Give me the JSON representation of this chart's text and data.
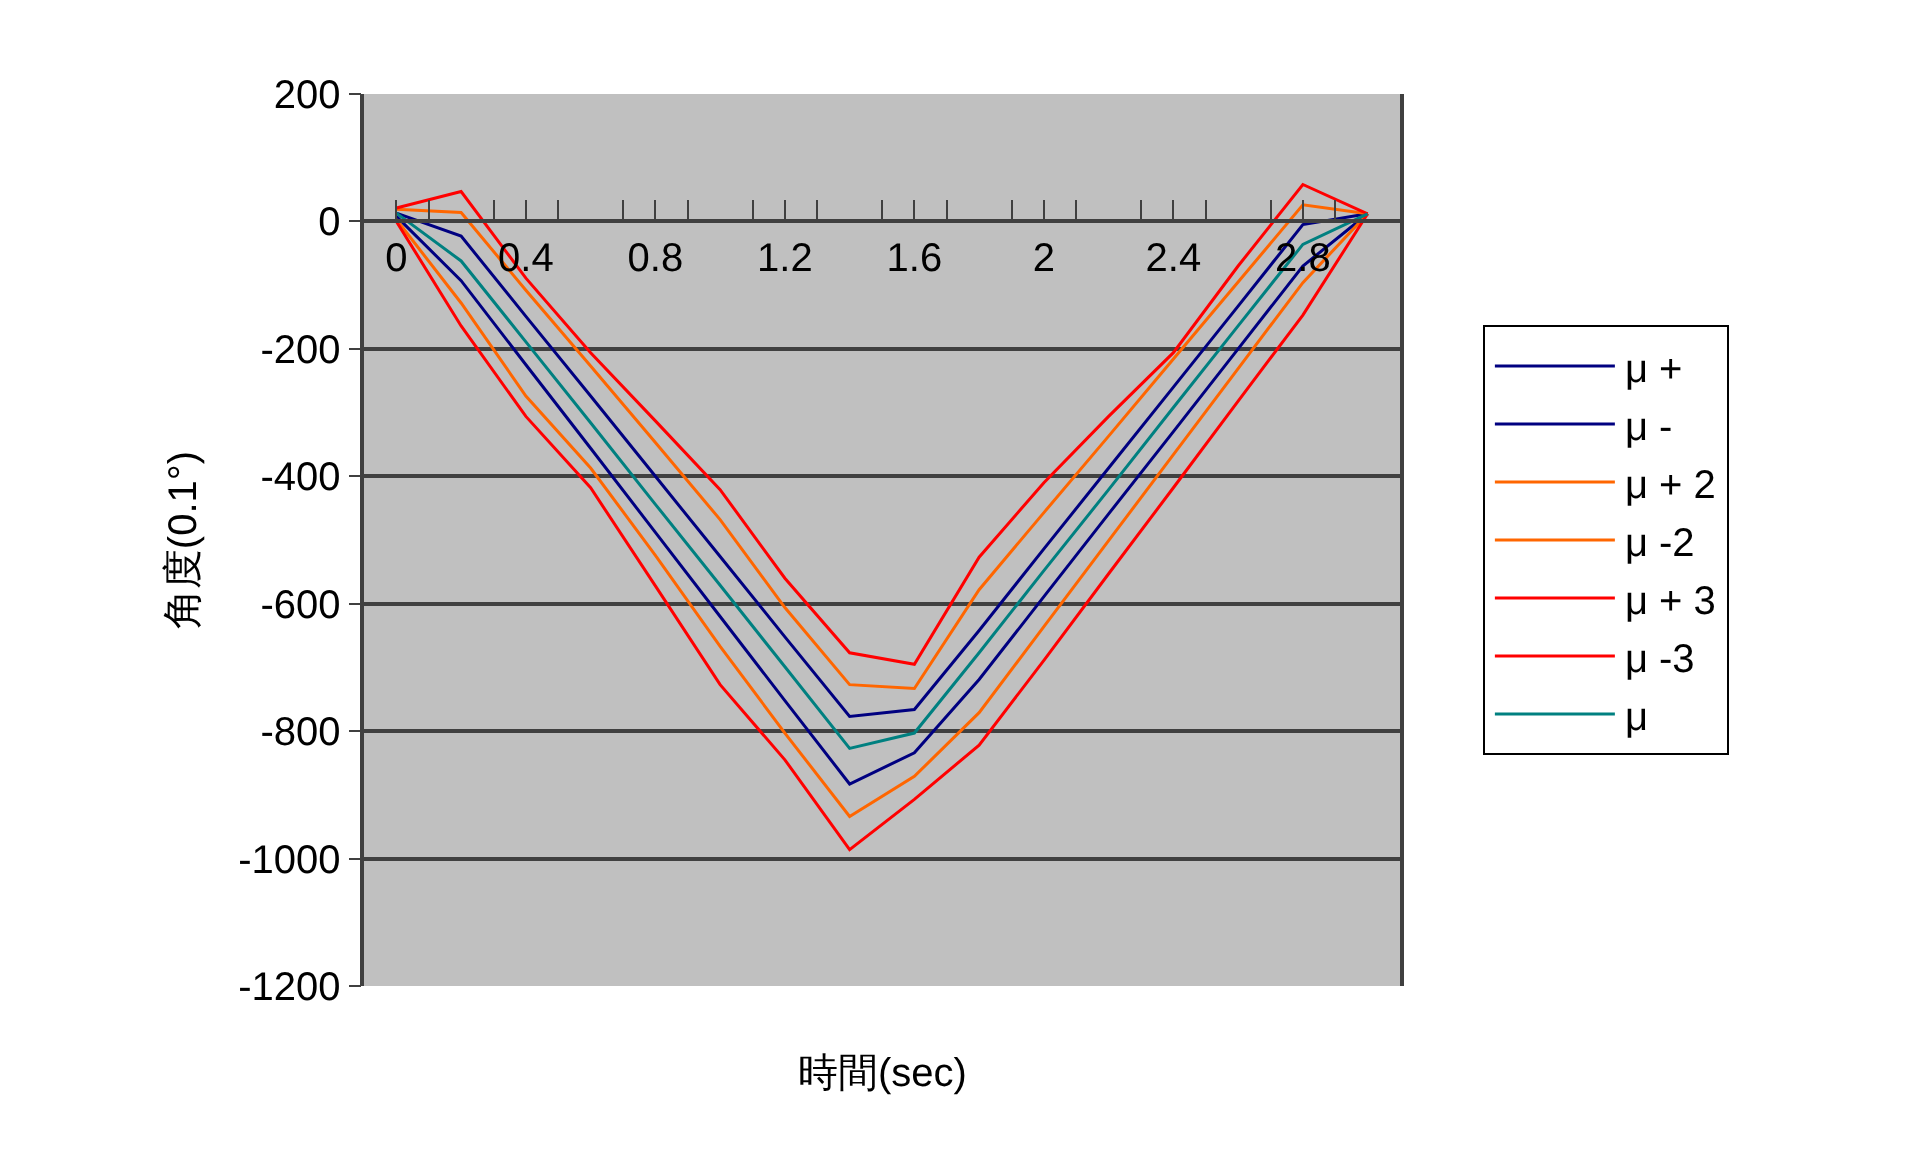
{
  "chart_data": {
    "type": "line",
    "xlabel": "時間(sec)",
    "ylabel": "角度(0.1°)",
    "x": [
      0,
      0.2,
      0.4,
      0.6,
      0.8,
      1.0,
      1.2,
      1.4,
      1.6,
      1.8,
      2.0,
      2.2,
      2.4,
      2.6,
      2.8,
      3.0
    ],
    "xlim": [
      -0.1,
      3.1
    ],
    "xticks": [
      0,
      {
        "value": 0.1,
        "label": null
      },
      {
        "value": 0.3,
        "label": null
      },
      0.4,
      {
        "value": 0.5,
        "label": null
      },
      {
        "value": 0.7,
        "label": null
      },
      0.8,
      {
        "value": 0.9,
        "label": null
      },
      {
        "value": 1.1,
        "label": null
      },
      1.2,
      {
        "value": 1.3,
        "label": null
      },
      {
        "value": 1.5,
        "label": null
      },
      1.6,
      {
        "value": 1.7,
        "label": null
      },
      {
        "value": 1.9,
        "label": null
      },
      2,
      {
        "value": 2.1,
        "label": null
      },
      {
        "value": 2.3,
        "label": null
      },
      2.4,
      {
        "value": 2.5,
        "label": null
      },
      {
        "value": 2.7,
        "label": null
      },
      2.8,
      {
        "value": 2.9,
        "label": null
      }
    ],
    "ylim": [
      -1200,
      200
    ],
    "yticks": [
      200,
      0,
      {
        "value": -200,
        "label": "-200"
      },
      {
        "value": -400,
        "label": "-400"
      },
      {
        "value": -600,
        "label": "-600"
      },
      {
        "value": -800,
        "label": "-800"
      },
      {
        "value": -1000,
        "label": "-1000"
      },
      {
        "value": -1200,
        "label": "-1200"
      }
    ],
    "grid": "y",
    "legend": "right",
    "marker": "none",
    "line_style": "solid",
    "series": [
      {
        "name": "μ +",
        "color": "#000080",
        "values": [
          13,
          -23,
          -149,
          -274,
          -400,
          -526,
          -652,
          -777,
          -766,
          -642,
          -514,
          -387,
          -260,
          -133,
          -5,
          12
        ]
      },
      {
        "name": "μ -",
        "color": "#000080",
        "values": [
          8,
          -93,
          -225,
          -356,
          -488,
          -620,
          -752,
          -883,
          -834,
          -719,
          -589,
          -459,
          -330,
          -200,
          -70,
          12
        ]
      },
      {
        "name": "μ + 2",
        "color": "#ff6600",
        "values": [
          19,
          14,
          -108,
          -227,
          -347,
          -468,
          -606,
          -727,
          -733,
          -578,
          -457,
          -337,
          -216,
          -95,
          26,
          12
        ]
      },
      {
        "name": "μ -2",
        "color": "#ff6600",
        "values": [
          3,
          -128,
          -274,
          -387,
          -524,
          -667,
          -803,
          -934,
          -871,
          -771,
          -636,
          -501,
          -366,
          -231,
          -96,
          12
        ]
      },
      {
        "name": "μ + 3",
        "color": "#ff0000",
        "values": [
          21,
          47,
          -89,
          -206,
          -313,
          -421,
          -560,
          -677,
          -695,
          -527,
          -410,
          -306,
          -206,
          -70,
          58,
          12
        ]
      },
      {
        "name": "μ -3",
        "color": "#ff0000",
        "values": [
          0,
          -164,
          -306,
          -418,
          -572,
          -727,
          -845,
          -986,
          -907,
          -822,
          -689,
          -553,
          -418,
          -282,
          -147,
          12
        ]
      },
      {
        "name": "μ",
        "color": "#008080",
        "values": [
          13,
          -62,
          -189,
          -316,
          -444,
          -571,
          -699,
          -827,
          -803,
          -677,
          -548,
          -421,
          -292,
          -164,
          -36,
          12
        ]
      }
    ]
  }
}
